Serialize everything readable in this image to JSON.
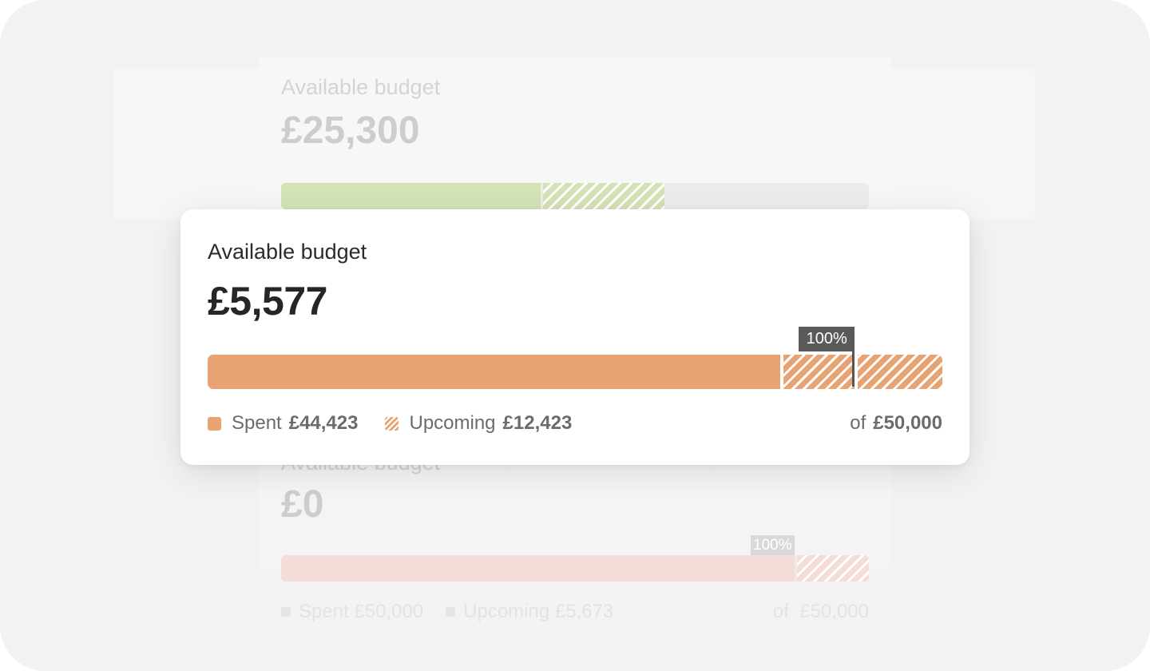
{
  "background_cards": [
    {
      "title": "Available budget",
      "amount": "£25,300",
      "colors": {
        "spent": "#d4e3b6",
        "upcoming": "#d4e3b6",
        "track": "#ececec"
      }
    },
    {
      "title": "Available budget",
      "amount": "£0",
      "marker_label": "100%",
      "legend": {
        "spent_label": "Spent",
        "spent_value": "£50,000",
        "upcoming_label": "Upcoming",
        "upcoming_value": "£5,673",
        "total_prefix": "of",
        "total_value": "£50,000"
      },
      "colors": {
        "spent": "#f4dcd8",
        "upcoming": "#f4dcd8"
      }
    }
  ],
  "budget_card": {
    "title": "Available budget",
    "amount": "£5,577",
    "marker_label": "100%",
    "legend": {
      "spent_label": "Spent",
      "spent_value": "£44,423",
      "upcoming_label": "Upcoming",
      "upcoming_value": "£12,423",
      "total_prefix": "of",
      "total_value": "£50,000"
    },
    "colors": {
      "spent": "#e8a373",
      "marker": "#5a5a5a"
    }
  },
  "chart_data": {
    "type": "bar",
    "orientation": "horizontal-stacked",
    "budget": 50000,
    "spent": 44423,
    "upcoming": 12423,
    "available": 5577,
    "marker": "100%"
  }
}
